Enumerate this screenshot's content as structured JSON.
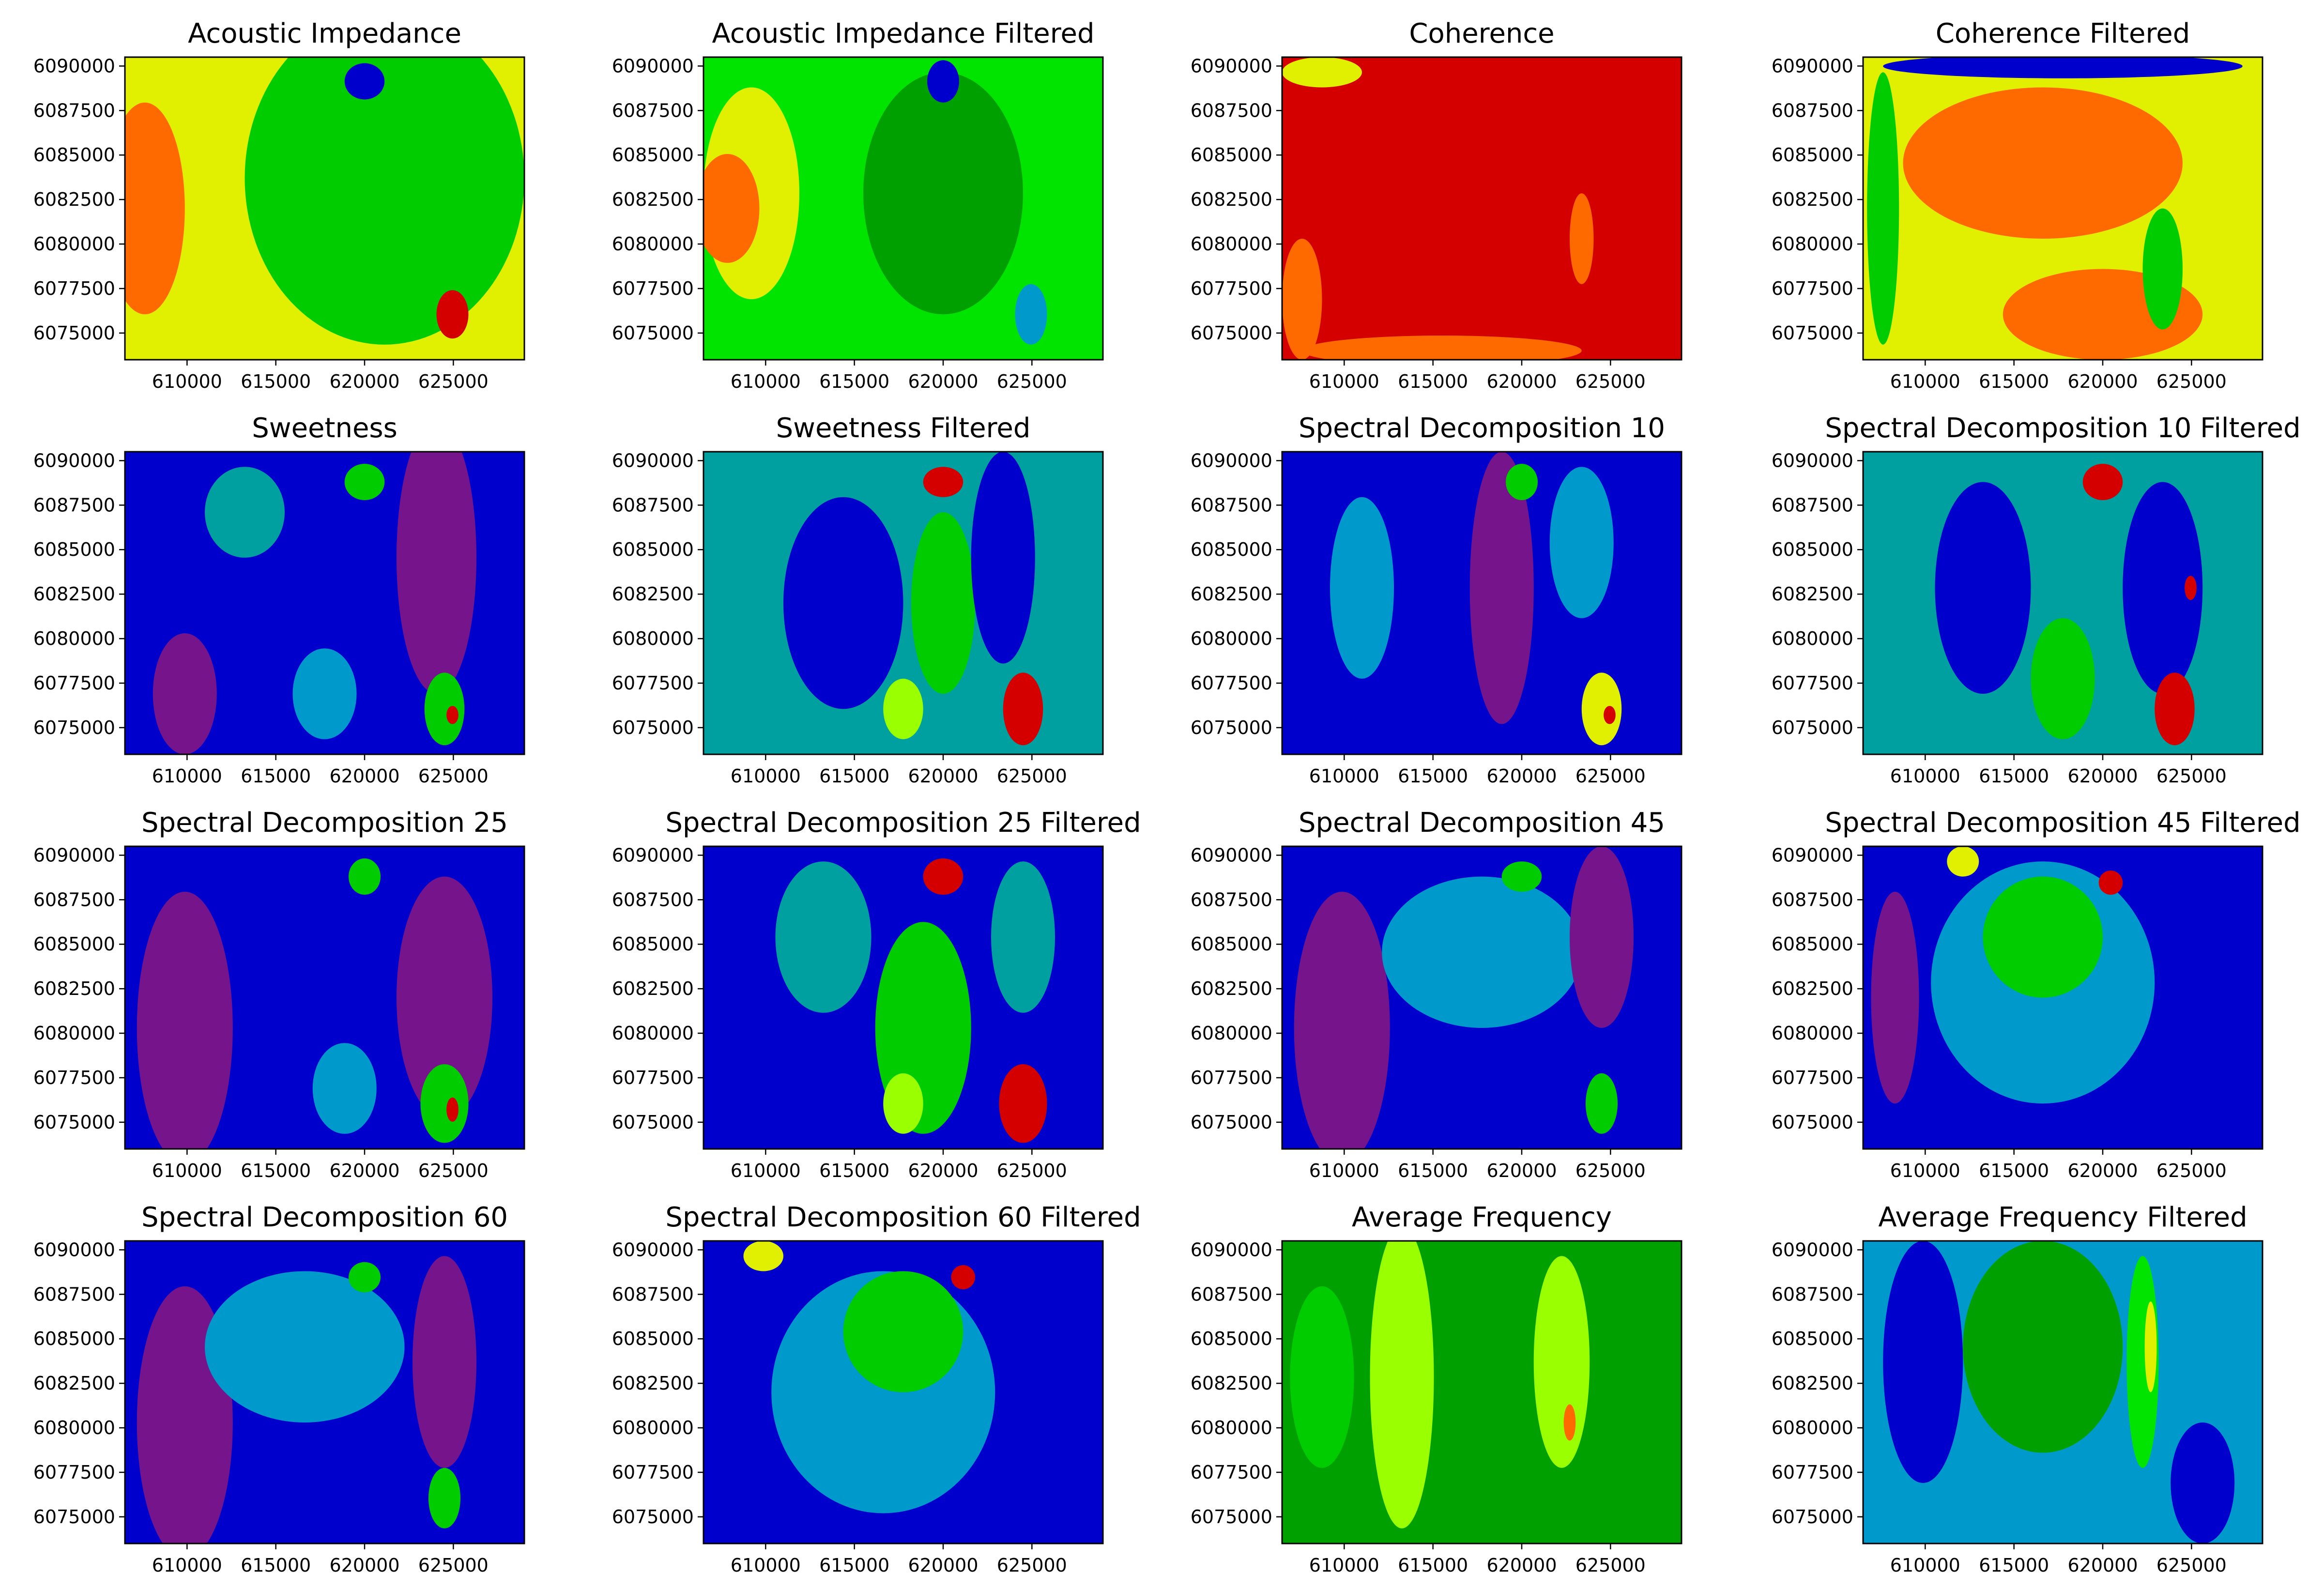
{
  "figure": {
    "x_ticks": [
      "610000",
      "615000",
      "620000",
      "625000"
    ],
    "y_ticks": [
      "6090000",
      "6087500",
      "6085000",
      "6082500",
      "6080000",
      "6077500",
      "6075000"
    ],
    "x_range": [
      606500,
      629000
    ],
    "y_range": [
      6073500,
      6090500
    ]
  },
  "palette": {
    "purple": "#76148c",
    "blue": "#0000cd",
    "teal": "#00a0a0",
    "lightblue": "#0099cc",
    "darkgreen": "#00a000",
    "green": "#00cc00",
    "brightgreen": "#00e400",
    "lime": "#9aff00",
    "yellow": "#e0f000",
    "orange": "#ff6a00",
    "red": "#d40000",
    "darkred": "#b00000"
  },
  "panels": [
    {
      "title": "Acoustic Impedance",
      "base": "yellow",
      "blobs": [
        [
          "green",
          0.65,
          0.4,
          0.35,
          0.55
        ],
        [
          "orange",
          0.05,
          0.5,
          0.1,
          0.35
        ],
        [
          "blue",
          0.6,
          0.08,
          0.05,
          0.06
        ],
        [
          "red",
          0.82,
          0.85,
          0.04,
          0.08
        ]
      ]
    },
    {
      "title": "Acoustic Impedance Filtered",
      "base": "brightgreen",
      "blobs": [
        [
          "darkgreen",
          0.6,
          0.45,
          0.2,
          0.4
        ],
        [
          "yellow",
          0.12,
          0.45,
          0.12,
          0.35
        ],
        [
          "orange",
          0.06,
          0.5,
          0.08,
          0.18
        ],
        [
          "blue",
          0.6,
          0.08,
          0.04,
          0.07
        ],
        [
          "lightblue",
          0.82,
          0.85,
          0.04,
          0.1
        ]
      ]
    },
    {
      "title": "Coherence",
      "base": "red",
      "blobs": [
        [
          "orange",
          0.05,
          0.8,
          0.05,
          0.2
        ],
        [
          "orange",
          0.4,
          0.97,
          0.35,
          0.05
        ],
        [
          "yellow",
          0.1,
          0.05,
          0.1,
          0.05
        ],
        [
          "orange",
          0.75,
          0.6,
          0.03,
          0.15
        ]
      ]
    },
    {
      "title": "Coherence Filtered",
      "base": "yellow",
      "blobs": [
        [
          "orange",
          0.45,
          0.35,
          0.35,
          0.25
        ],
        [
          "orange",
          0.6,
          0.85,
          0.25,
          0.15
        ],
        [
          "green",
          0.05,
          0.5,
          0.04,
          0.45
        ],
        [
          "blue",
          0.5,
          0.03,
          0.45,
          0.04
        ],
        [
          "green",
          0.75,
          0.7,
          0.05,
          0.2
        ]
      ]
    },
    {
      "title": "Sweetness",
      "base": "blue",
      "blobs": [
        [
          "purple",
          0.78,
          0.35,
          0.1,
          0.45
        ],
        [
          "purple",
          0.15,
          0.8,
          0.08,
          0.2
        ],
        [
          "teal",
          0.3,
          0.2,
          0.1,
          0.15
        ],
        [
          "lightblue",
          0.5,
          0.8,
          0.08,
          0.15
        ],
        [
          "green",
          0.6,
          0.1,
          0.05,
          0.06
        ],
        [
          "green",
          0.8,
          0.85,
          0.05,
          0.12
        ],
        [
          "red",
          0.82,
          0.87,
          0.015,
          0.03
        ]
      ]
    },
    {
      "title": "Sweetness Filtered",
      "base": "teal",
      "blobs": [
        [
          "blue",
          0.35,
          0.5,
          0.15,
          0.35
        ],
        [
          "green",
          0.6,
          0.5,
          0.08,
          0.3
        ],
        [
          "blue",
          0.75,
          0.35,
          0.08,
          0.35
        ],
        [
          "red",
          0.6,
          0.1,
          0.05,
          0.05
        ],
        [
          "red",
          0.8,
          0.85,
          0.05,
          0.12
        ],
        [
          "lime",
          0.5,
          0.85,
          0.05,
          0.1
        ]
      ]
    },
    {
      "title": "Spectral Decomposition 10",
      "base": "blue",
      "blobs": [
        [
          "purple",
          0.55,
          0.45,
          0.08,
          0.45
        ],
        [
          "lightblue",
          0.2,
          0.45,
          0.08,
          0.3
        ],
        [
          "lightblue",
          0.75,
          0.3,
          0.08,
          0.25
        ],
        [
          "green",
          0.6,
          0.1,
          0.04,
          0.06
        ],
        [
          "yellow",
          0.8,
          0.85,
          0.05,
          0.12
        ],
        [
          "red",
          0.82,
          0.87,
          0.015,
          0.03
        ]
      ]
    },
    {
      "title": "Spectral Decomposition 10 Filtered",
      "base": "teal",
      "blobs": [
        [
          "blue",
          0.3,
          0.45,
          0.12,
          0.35
        ],
        [
          "blue",
          0.75,
          0.45,
          0.1,
          0.35
        ],
        [
          "green",
          0.5,
          0.75,
          0.08,
          0.2
        ],
        [
          "red",
          0.6,
          0.1,
          0.05,
          0.06
        ],
        [
          "red",
          0.78,
          0.85,
          0.05,
          0.12
        ],
        [
          "red",
          0.82,
          0.45,
          0.015,
          0.04
        ]
      ]
    },
    {
      "title": "Spectral Decomposition 25",
      "base": "blue",
      "blobs": [
        [
          "purple",
          0.15,
          0.6,
          0.12,
          0.45
        ],
        [
          "purple",
          0.8,
          0.5,
          0.12,
          0.4
        ],
        [
          "lightblue",
          0.55,
          0.8,
          0.08,
          0.15
        ],
        [
          "green",
          0.6,
          0.1,
          0.04,
          0.06
        ],
        [
          "green",
          0.8,
          0.85,
          0.06,
          0.13
        ],
        [
          "red",
          0.82,
          0.87,
          0.015,
          0.04
        ]
      ]
    },
    {
      "title": "Spectral Decomposition 25 Filtered",
      "base": "blue",
      "blobs": [
        [
          "teal",
          0.3,
          0.3,
          0.12,
          0.25
        ],
        [
          "green",
          0.55,
          0.6,
          0.12,
          0.35
        ],
        [
          "teal",
          0.8,
          0.3,
          0.08,
          0.25
        ],
        [
          "red",
          0.6,
          0.1,
          0.05,
          0.06
        ],
        [
          "red",
          0.8,
          0.85,
          0.06,
          0.13
        ],
        [
          "lime",
          0.5,
          0.85,
          0.05,
          0.1
        ]
      ]
    },
    {
      "title": "Spectral Decomposition 45",
      "base": "blue",
      "blobs": [
        [
          "purple",
          0.15,
          0.6,
          0.12,
          0.45
        ],
        [
          "lightblue",
          0.5,
          0.35,
          0.25,
          0.25
        ],
        [
          "purple",
          0.8,
          0.3,
          0.08,
          0.3
        ],
        [
          "green",
          0.6,
          0.1,
          0.05,
          0.05
        ],
        [
          "green",
          0.8,
          0.85,
          0.04,
          0.1
        ]
      ]
    },
    {
      "title": "Spectral Decomposition 45 Filtered",
      "base": "blue",
      "blobs": [
        [
          "lightblue",
          0.45,
          0.45,
          0.28,
          0.4
        ],
        [
          "green",
          0.45,
          0.3,
          0.15,
          0.2
        ],
        [
          "purple",
          0.08,
          0.5,
          0.06,
          0.35
        ],
        [
          "red",
          0.62,
          0.12,
          0.03,
          0.04
        ],
        [
          "yellow",
          0.25,
          0.05,
          0.04,
          0.05
        ]
      ]
    },
    {
      "title": "Spectral Decomposition 60",
      "base": "blue",
      "blobs": [
        [
          "purple",
          0.15,
          0.6,
          0.12,
          0.45
        ],
        [
          "lightblue",
          0.45,
          0.35,
          0.25,
          0.25
        ],
        [
          "purple",
          0.8,
          0.4,
          0.08,
          0.35
        ],
        [
          "green",
          0.6,
          0.12,
          0.04,
          0.05
        ],
        [
          "green",
          0.8,
          0.85,
          0.04,
          0.1
        ]
      ]
    },
    {
      "title": "Spectral Decomposition 60 Filtered",
      "base": "blue",
      "blobs": [
        [
          "lightblue",
          0.45,
          0.5,
          0.28,
          0.4
        ],
        [
          "green",
          0.5,
          0.3,
          0.15,
          0.2
        ],
        [
          "red",
          0.65,
          0.12,
          0.03,
          0.04
        ],
        [
          "yellow",
          0.15,
          0.05,
          0.05,
          0.05
        ]
      ]
    },
    {
      "title": "Average Frequency",
      "base": "darkgreen",
      "blobs": [
        [
          "lime",
          0.3,
          0.45,
          0.08,
          0.5
        ],
        [
          "lime",
          0.7,
          0.4,
          0.07,
          0.35
        ],
        [
          "green",
          0.1,
          0.45,
          0.08,
          0.3
        ],
        [
          "orange",
          0.72,
          0.6,
          0.015,
          0.06
        ]
      ]
    },
    {
      "title": "Average Frequency Filtered",
      "base": "lightblue",
      "blobs": [
        [
          "blue",
          0.15,
          0.4,
          0.1,
          0.4
        ],
        [
          "darkgreen",
          0.45,
          0.35,
          0.2,
          0.35
        ],
        [
          "brightgreen",
          0.7,
          0.4,
          0.04,
          0.35
        ],
        [
          "yellow",
          0.72,
          0.35,
          0.015,
          0.15
        ],
        [
          "blue",
          0.85,
          0.8,
          0.08,
          0.2
        ]
      ]
    }
  ]
}
